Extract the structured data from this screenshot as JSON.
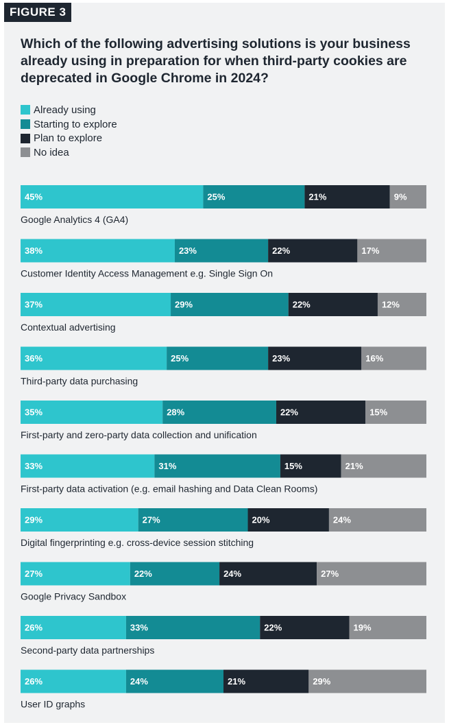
{
  "figure_label": "FIGURE 3",
  "colors": [
    "#2ec5cd",
    "#138b94",
    "#1e2630",
    "#8d8f92"
  ],
  "chart_data": {
    "type": "bar",
    "orientation": "horizontal",
    "stacked": true,
    "title": "Which of the following advertising solutions is your business already using in preparation for when third-party cookies are deprecated in Google Chrome in 2024?",
    "categories": [
      "Google Analytics 4 (GA4)",
      "Customer Identity Access Management e.g. Single Sign On",
      "Contextual advertising",
      "Third-party data purchasing",
      "First-party and zero-party data collection and unification",
      "First-party data activation (e.g. email hashing and Data Clean Rooms)",
      "Digital fingerprinting e.g. cross-device session stitching",
      "Google Privacy Sandbox",
      "Second-party data partnerships",
      "User ID graphs"
    ],
    "series": [
      {
        "name": "Already using",
        "values": [
          45,
          38,
          37,
          36,
          35,
          33,
          29,
          27,
          26,
          26
        ]
      },
      {
        "name": "Starting to explore",
        "values": [
          25,
          23,
          29,
          25,
          28,
          31,
          27,
          22,
          33,
          24
        ]
      },
      {
        "name": "Plan to explore",
        "values": [
          21,
          22,
          22,
          23,
          22,
          15,
          20,
          24,
          22,
          21
        ]
      },
      {
        "name": "No idea",
        "values": [
          9,
          17,
          12,
          16,
          15,
          21,
          24,
          27,
          19,
          29
        ]
      }
    ],
    "value_suffix": "%",
    "legend_position": "top-left"
  }
}
